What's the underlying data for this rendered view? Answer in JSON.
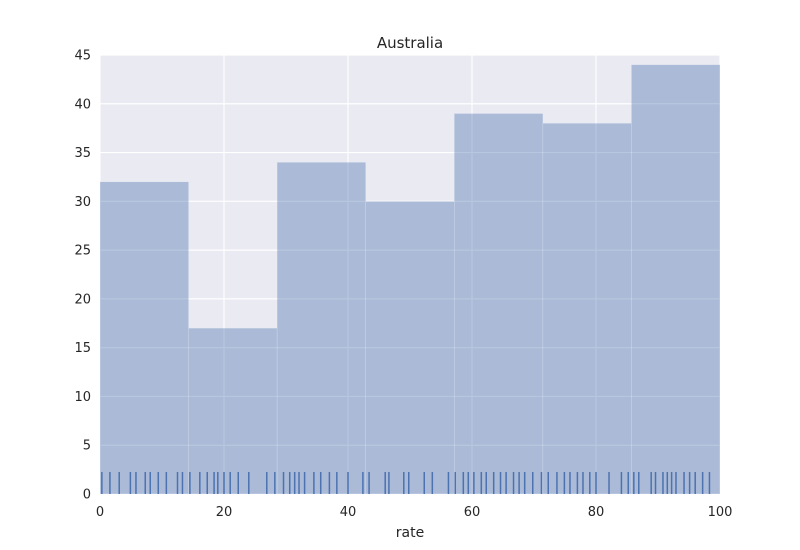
{
  "chart_data": {
    "type": "bar",
    "title": "Australia",
    "xlabel": "rate",
    "ylabel": "",
    "xlim": [
      0,
      100
    ],
    "ylim": [
      0,
      45
    ],
    "grid": true,
    "x_ticks": [
      0,
      20,
      40,
      60,
      80,
      100
    ],
    "y_ticks": [
      0,
      5,
      10,
      15,
      20,
      25,
      30,
      35,
      40,
      45
    ],
    "bins": [
      {
        "start": 0,
        "end": 14.29,
        "count": 32
      },
      {
        "start": 14.29,
        "end": 28.57,
        "count": 17
      },
      {
        "start": 28.57,
        "end": 42.86,
        "count": 34
      },
      {
        "start": 42.86,
        "end": 57.14,
        "count": 30
      },
      {
        "start": 57.14,
        "end": 71.43,
        "count": 39
      },
      {
        "start": 71.43,
        "end": 85.71,
        "count": 38
      },
      {
        "start": 85.71,
        "end": 100,
        "count": 44
      }
    ],
    "rug": [
      0.3,
      1.6,
      3.1,
      4.9,
      5.8,
      7.3,
      8.1,
      9.4,
      10.7,
      12.5,
      13.3,
      14.5,
      16.1,
      17.3,
      18.4,
      19.0,
      20.0,
      21.0,
      22.3,
      24.0,
      26.9,
      28.2,
      29.6,
      30.6,
      31.4,
      32.1,
      33.0,
      34.5,
      35.6,
      37.0,
      38.2,
      40.0,
      42.4,
      43.4,
      46.0,
      46.6,
      49.0,
      49.8,
      52.3,
      53.6,
      56.2,
      57.3,
      58.6,
      59.4,
      60.3,
      61.5,
      62.3,
      63.5,
      64.6,
      65.5,
      66.7,
      67.6,
      68.5,
      69.8,
      71.2,
      72.3,
      73.7,
      74.9,
      75.8,
      77.0,
      77.9,
      79.0,
      80.0,
      82.1,
      84.1,
      85.2,
      86.1,
      86.9,
      88.9,
      89.6,
      90.8,
      91.5,
      92.2,
      92.9,
      94.2,
      95.1,
      96.0,
      97.2,
      98.3
    ]
  }
}
